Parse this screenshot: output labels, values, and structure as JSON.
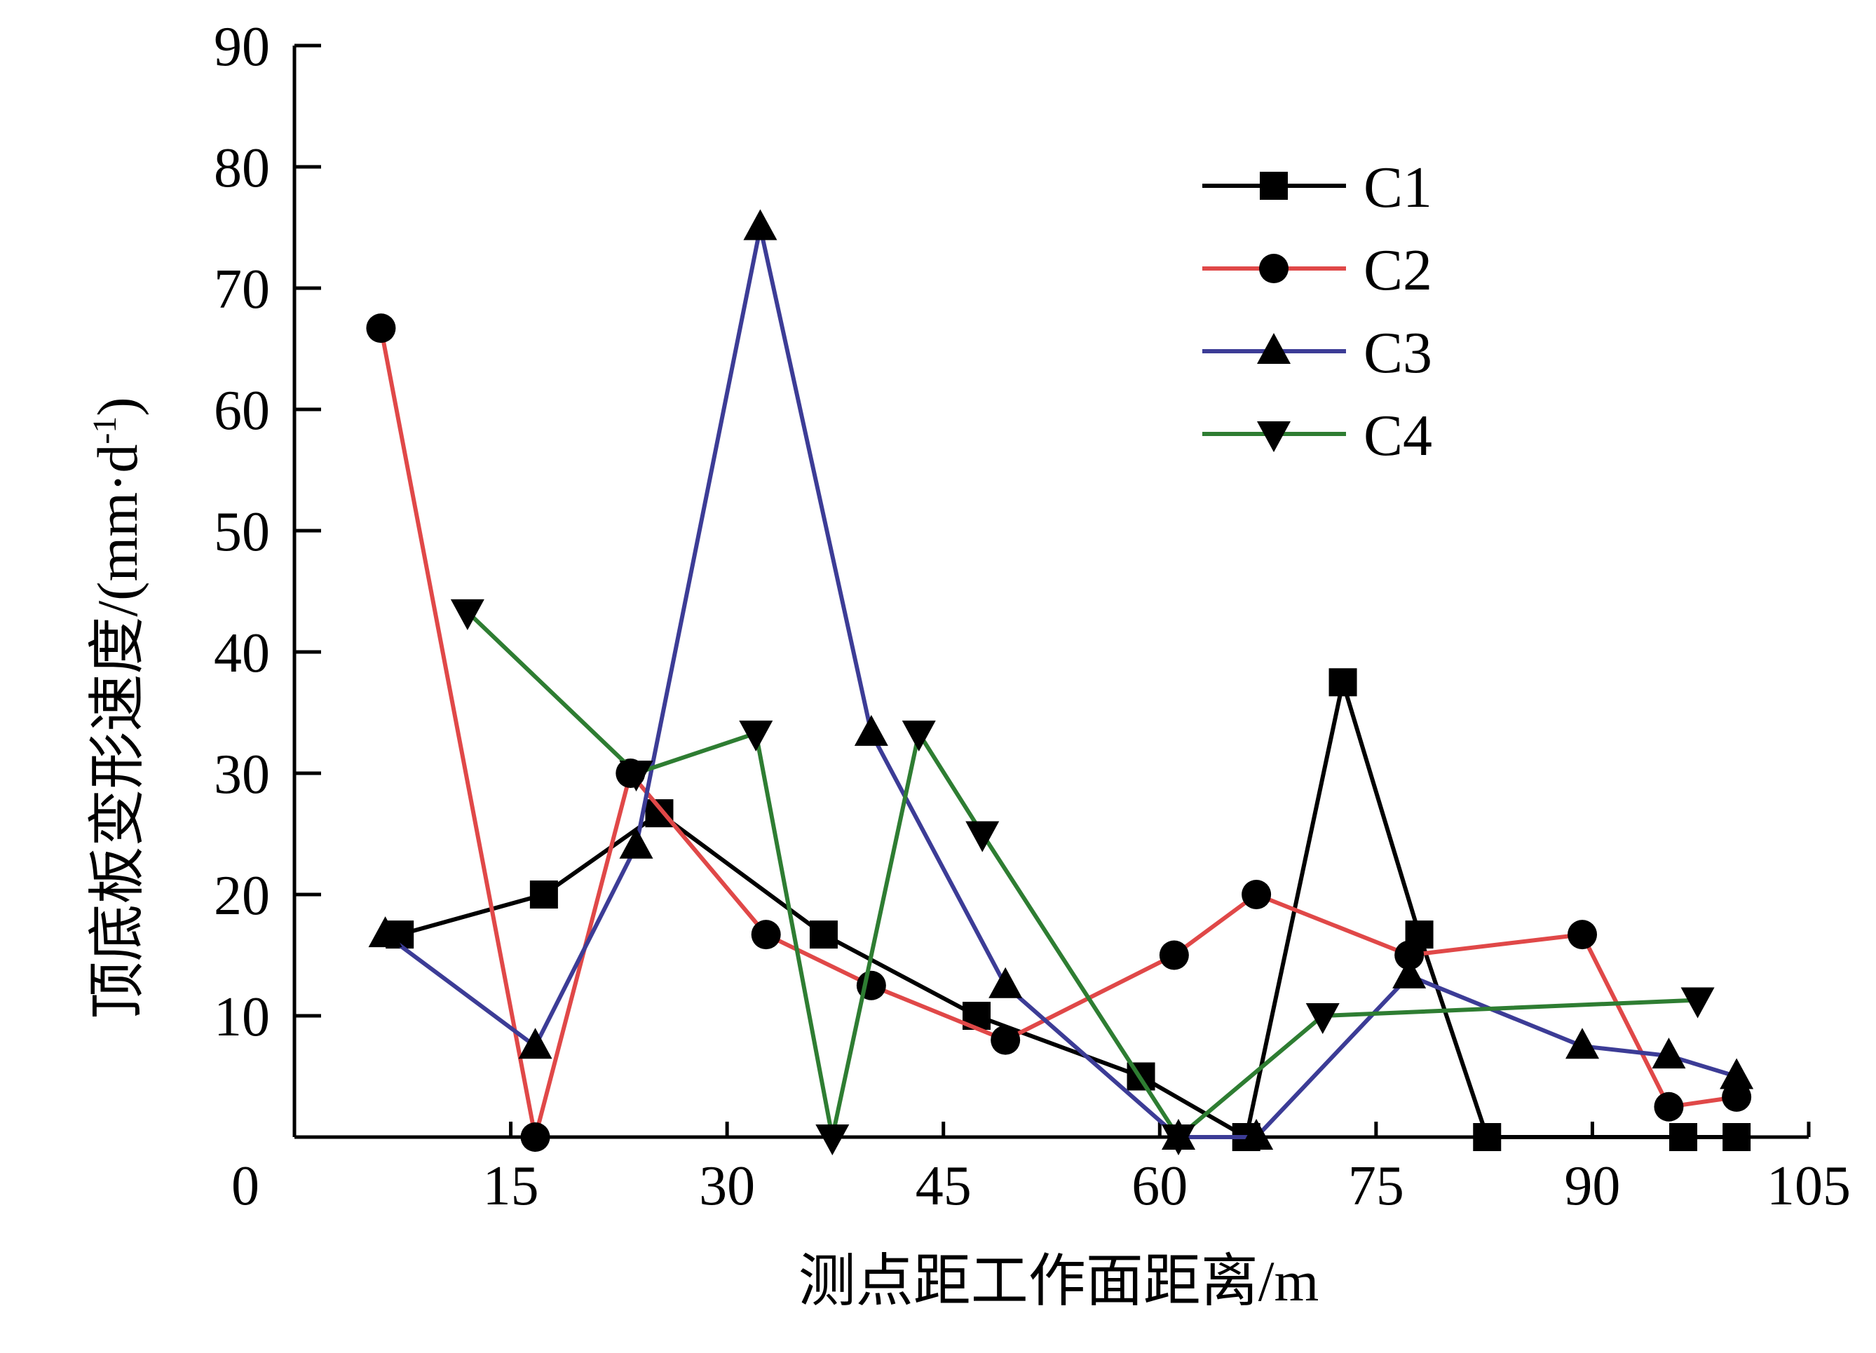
{
  "chart_data": {
    "type": "line",
    "xlabel": "测点距工作面距离/m",
    "ylabel": "顶底板变形速度/(mm·d",
    "ylabel_sup": "-1",
    "ylabel_close": ")",
    "x_origin_label": "0",
    "xlim": [
      0,
      105
    ],
    "ylim": [
      0,
      90
    ],
    "xticks": [
      15,
      30,
      45,
      60,
      75,
      90,
      105
    ],
    "xtick_labels": [
      "15",
      "30",
      "45",
      "60",
      "75",
      "90",
      "105"
    ],
    "yticks": [
      10,
      20,
      30,
      40,
      50,
      60,
      70,
      80,
      90
    ],
    "ytick_labels": [
      "10",
      "20",
      "30",
      "40",
      "50",
      "60",
      "70",
      "80",
      "90"
    ],
    "legend_position": "top-right",
    "series": [
      {
        "name": "C1",
        "color": "#000000",
        "marker": "square",
        "x": [
          7.3,
          17.3,
          25.3,
          36.7,
          47.3,
          58.7,
          66.0,
          72.7,
          78.0,
          82.7,
          96.3,
          100.0
        ],
        "y": [
          16.7,
          20.0,
          26.7,
          16.7,
          10.0,
          5.0,
          0.0,
          37.5,
          16.7,
          0.0,
          0.0,
          0.0
        ]
      },
      {
        "name": "C2",
        "color": "#e04848",
        "marker": "circle",
        "x": [
          6.0,
          16.7,
          23.3,
          32.7,
          40.0,
          49.3,
          61.0,
          66.7,
          77.3,
          89.3,
          95.3,
          100.0
        ],
        "y": [
          66.7,
          0.0,
          30.0,
          16.7,
          12.5,
          8.0,
          15.0,
          20.0,
          15.0,
          16.7,
          2.5,
          3.3
        ]
      },
      {
        "name": "C3",
        "color": "#3c3c96",
        "marker": "triangle-up",
        "x": [
          6.3,
          16.7,
          23.7,
          32.3,
          40.0,
          49.3,
          61.3,
          66.7,
          77.3,
          89.3,
          95.3,
          100.0
        ],
        "y": [
          16.7,
          7.5,
          24.0,
          75.0,
          33.3,
          12.5,
          0.0,
          0.0,
          13.3,
          7.5,
          6.7,
          5.0
        ]
      },
      {
        "name": "C4",
        "color": "#2e7d32",
        "marker": "triangle-down",
        "x": [
          12.0,
          23.7,
          32.0,
          37.3,
          43.3,
          47.7,
          61.3,
          71.3,
          97.3
        ],
        "y": [
          43.3,
          30.0,
          33.3,
          0.0,
          33.3,
          25.0,
          0.0,
          10.0,
          11.3
        ]
      }
    ]
  }
}
